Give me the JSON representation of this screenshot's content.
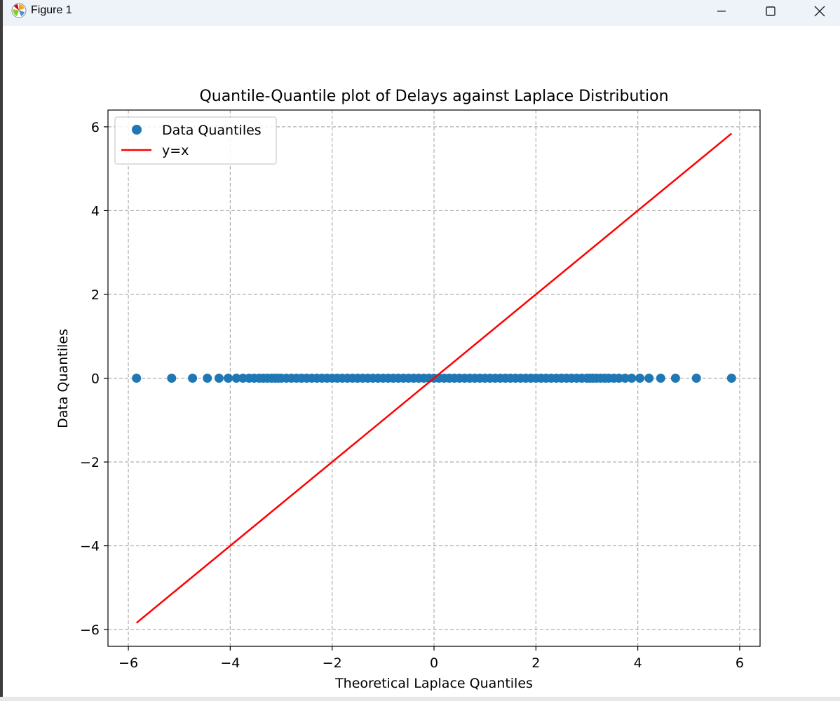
{
  "window": {
    "title": "Figure 1",
    "icon": "matplotlib-icon",
    "controls": [
      "minimize-icon",
      "maximize-icon",
      "close-icon"
    ]
  },
  "chart_data": {
    "type": "scatter",
    "title": "Quantile-Quantile plot of Delays against Laplace Distribution",
    "xlabel": "Theoretical Laplace Quantiles",
    "ylabel": "Data Quantiles",
    "xlim": [
      -6.4,
      6.4
    ],
    "ylim": [
      -6.4,
      6.4
    ],
    "xticks": [
      -6,
      -4,
      -2,
      0,
      2,
      4,
      6
    ],
    "yticks": [
      -6,
      -4,
      -2,
      0,
      2,
      4,
      6
    ],
    "xtick_labels": [
      "−6",
      "−4",
      "−2",
      "0",
      "2",
      "4",
      "6"
    ],
    "ytick_labels": [
      "−6",
      "−4",
      "−2",
      "0",
      "2",
      "4",
      "6"
    ],
    "grid": true,
    "legend_position": "top-left",
    "series": [
      {
        "name": "Data Quantiles",
        "kind": "scatter",
        "color": "#1f77b4",
        "x": [
          -5.84,
          -5.15,
          -4.74,
          -4.45,
          -4.22,
          -4.04,
          -3.88,
          -3.75,
          -3.63,
          -3.53,
          -3.43,
          -3.35,
          -3.27,
          -3.19,
          -3.12,
          -3.06,
          -3.0,
          -2.9,
          -2.8,
          -2.7,
          -2.6,
          -2.5,
          -2.4,
          -2.3,
          -2.2,
          -2.1,
          -2.0,
          -1.9,
          -1.8,
          -1.7,
          -1.6,
          -1.5,
          -1.4,
          -1.3,
          -1.2,
          -1.1,
          -1.0,
          -0.9,
          -0.8,
          -0.7,
          -0.6,
          -0.5,
          -0.4,
          -0.3,
          -0.2,
          -0.1,
          0.0,
          0.1,
          0.2,
          0.3,
          0.4,
          0.5,
          0.6,
          0.7,
          0.8,
          0.9,
          1.0,
          1.1,
          1.2,
          1.3,
          1.4,
          1.5,
          1.6,
          1.7,
          1.8,
          1.9,
          2.0,
          2.1,
          2.2,
          2.3,
          2.4,
          2.5,
          2.6,
          2.7,
          2.8,
          2.9,
          3.0,
          3.06,
          3.12,
          3.19,
          3.27,
          3.35,
          3.43,
          3.53,
          3.63,
          3.75,
          3.88,
          4.04,
          4.22,
          4.45,
          4.74,
          5.15,
          5.84
        ],
        "y_constant": 0
      },
      {
        "name": "y=x",
        "kind": "line",
        "color": "#ff0000",
        "x": [
          -5.84,
          5.84
        ],
        "y": [
          -5.84,
          5.84
        ]
      }
    ]
  }
}
